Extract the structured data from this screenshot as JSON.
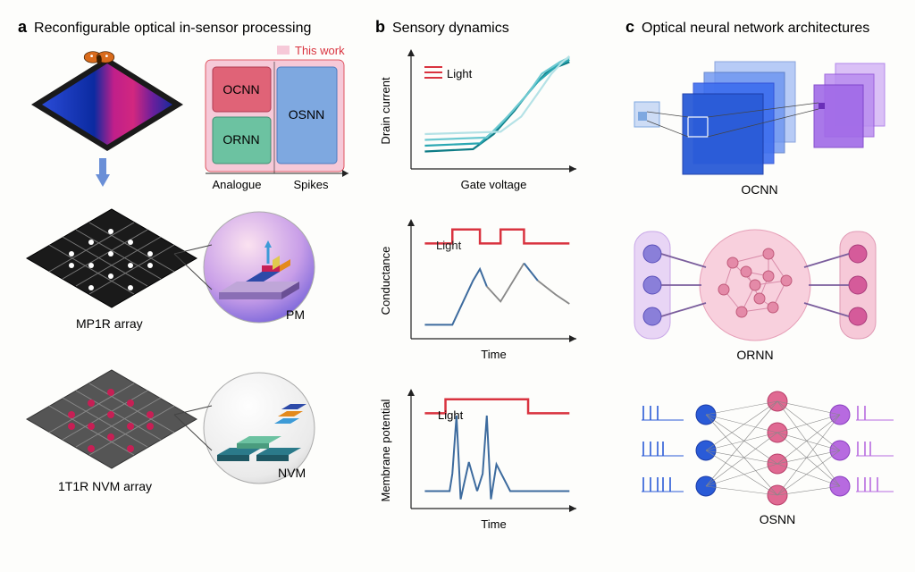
{
  "panel_a": {
    "label": "a",
    "title": "Reconfigurable optical in-sensor processing",
    "legend_this_work": "This work",
    "legend_box_color": "#f6c9d8",
    "box": {
      "ocnn": {
        "label": "OCNN",
        "fill": "#e06377",
        "text": "#222"
      },
      "ornn": {
        "label": "ORNN",
        "fill": "#6cc2a1",
        "text": "#222"
      },
      "osnn": {
        "label": "OSNN",
        "fill": "#7ea8e0",
        "text": "#222"
      },
      "x_left": "Analogue",
      "x_right": "Spikes",
      "bg": "#f6c9d8"
    },
    "sensor": {
      "frame": "#1a1a1a",
      "gradient": [
        "#2a4bd7",
        "#c01f8a",
        "#d2277f",
        "#172a9c"
      ]
    },
    "mp1r_label": "MP1R array",
    "pm_label": "PM",
    "nvm_array_label": "1T1R NVM array",
    "nvm_label": "NVM"
  },
  "panel_b": {
    "label": "b",
    "title": "Sensory dynamics",
    "charts": {
      "chart1": {
        "ylabel": "Drain current",
        "xlabel": "Gate voltage",
        "light_label": "Light",
        "curve_colors": [
          "#0e7c86",
          "#2aa7b2",
          "#6dc9d1",
          "#b5e2e6"
        ],
        "legend_red": "#d9333f",
        "curves": [
          [
            [
              10,
              85
            ],
            [
              45,
              83
            ],
            [
              60,
              70
            ],
            [
              75,
              50
            ],
            [
              88,
              30
            ],
            [
              100,
              15
            ],
            [
              115,
              8
            ]
          ],
          [
            [
              10,
              80
            ],
            [
              50,
              78
            ],
            [
              65,
              62
            ],
            [
              80,
              42
            ],
            [
              92,
              25
            ],
            [
              105,
              12
            ],
            [
              115,
              6
            ]
          ],
          [
            [
              10,
              75
            ],
            [
              55,
              73
            ],
            [
              70,
              55
            ],
            [
              85,
              35
            ],
            [
              95,
              18
            ],
            [
              108,
              8
            ],
            [
              115,
              4
            ]
          ],
          [
            [
              10,
              70
            ],
            [
              65,
              68
            ],
            [
              80,
              55
            ],
            [
              92,
              35
            ],
            [
              102,
              18
            ],
            [
              110,
              8
            ],
            [
              115,
              3
            ]
          ]
        ]
      },
      "chart2": {
        "ylabel": "Conductance",
        "xlabel": "Time",
        "light_label": "Light",
        "light_color": "#d9333f",
        "response_color": "#3d6b9e",
        "decay_color": "#888",
        "light_pulse": [
          [
            10,
            18
          ],
          [
            30,
            18
          ],
          [
            30,
            6
          ],
          [
            50,
            6
          ],
          [
            50,
            18
          ],
          [
            65,
            18
          ],
          [
            65,
            6
          ],
          [
            82,
            6
          ],
          [
            82,
            18
          ],
          [
            115,
            18
          ]
        ],
        "response": [
          [
            10,
            88
          ],
          [
            30,
            88
          ],
          [
            45,
            50
          ],
          [
            50,
            40
          ],
          [
            55,
            55
          ],
          [
            65,
            68
          ],
          [
            82,
            35
          ],
          [
            92,
            50
          ],
          [
            105,
            62
          ],
          [
            115,
            70
          ]
        ]
      },
      "chart3": {
        "ylabel": "Membrane potential",
        "xlabel": "Time",
        "light_label": "Light",
        "light_color": "#d9333f",
        "spike_color": "#3d6b9e",
        "light_pulse": [
          [
            10,
            18
          ],
          [
            25,
            18
          ],
          [
            25,
            6
          ],
          [
            85,
            6
          ],
          [
            85,
            18
          ],
          [
            115,
            18
          ]
        ],
        "spikes": [
          [
            [
              10,
              85
            ],
            [
              28,
              85
            ],
            [
              30,
              70
            ],
            [
              33,
              20
            ],
            [
              36,
              92
            ],
            [
              42,
              60
            ],
            [
              48,
              85
            ]
          ],
          [
            [
              48,
              85
            ],
            [
              52,
              70
            ],
            [
              55,
              20
            ],
            [
              58,
              92
            ],
            [
              62,
              62
            ],
            [
              72,
              85
            ],
            [
              115,
              85
            ]
          ]
        ]
      },
      "axis_color": "#222",
      "axis_fontsize": 12
    }
  },
  "panel_c": {
    "label": "c",
    "title": "Optical neural network architectures",
    "ocnn": {
      "label": "OCNN",
      "input_color": "#7ea8e0",
      "conv_colors": [
        "#2a5bd7",
        "#3d6eee",
        "#6a93f0",
        "#9ab7f5"
      ],
      "out_colors": [
        "#a16ae8",
        "#b98df0",
        "#d2b2f5"
      ]
    },
    "ornn": {
      "label": "ORNN",
      "input_bg": "#e8d5f5",
      "input_node": "#8a7fd9",
      "reservoir_bg": "#f8d0dd",
      "reservoir_node": "#e48aa8",
      "output_bg": "#f6c9d8",
      "output_node": "#d55b9a",
      "edge": "#7a5d9c"
    },
    "osnn": {
      "label": "OSNN",
      "layer_colors": [
        "#2a5bd7",
        "#e06992",
        "#b76ae0"
      ],
      "edge": "#888",
      "spike_color_in": "#2a5bd7",
      "spike_color_out": "#b76ae0"
    }
  }
}
